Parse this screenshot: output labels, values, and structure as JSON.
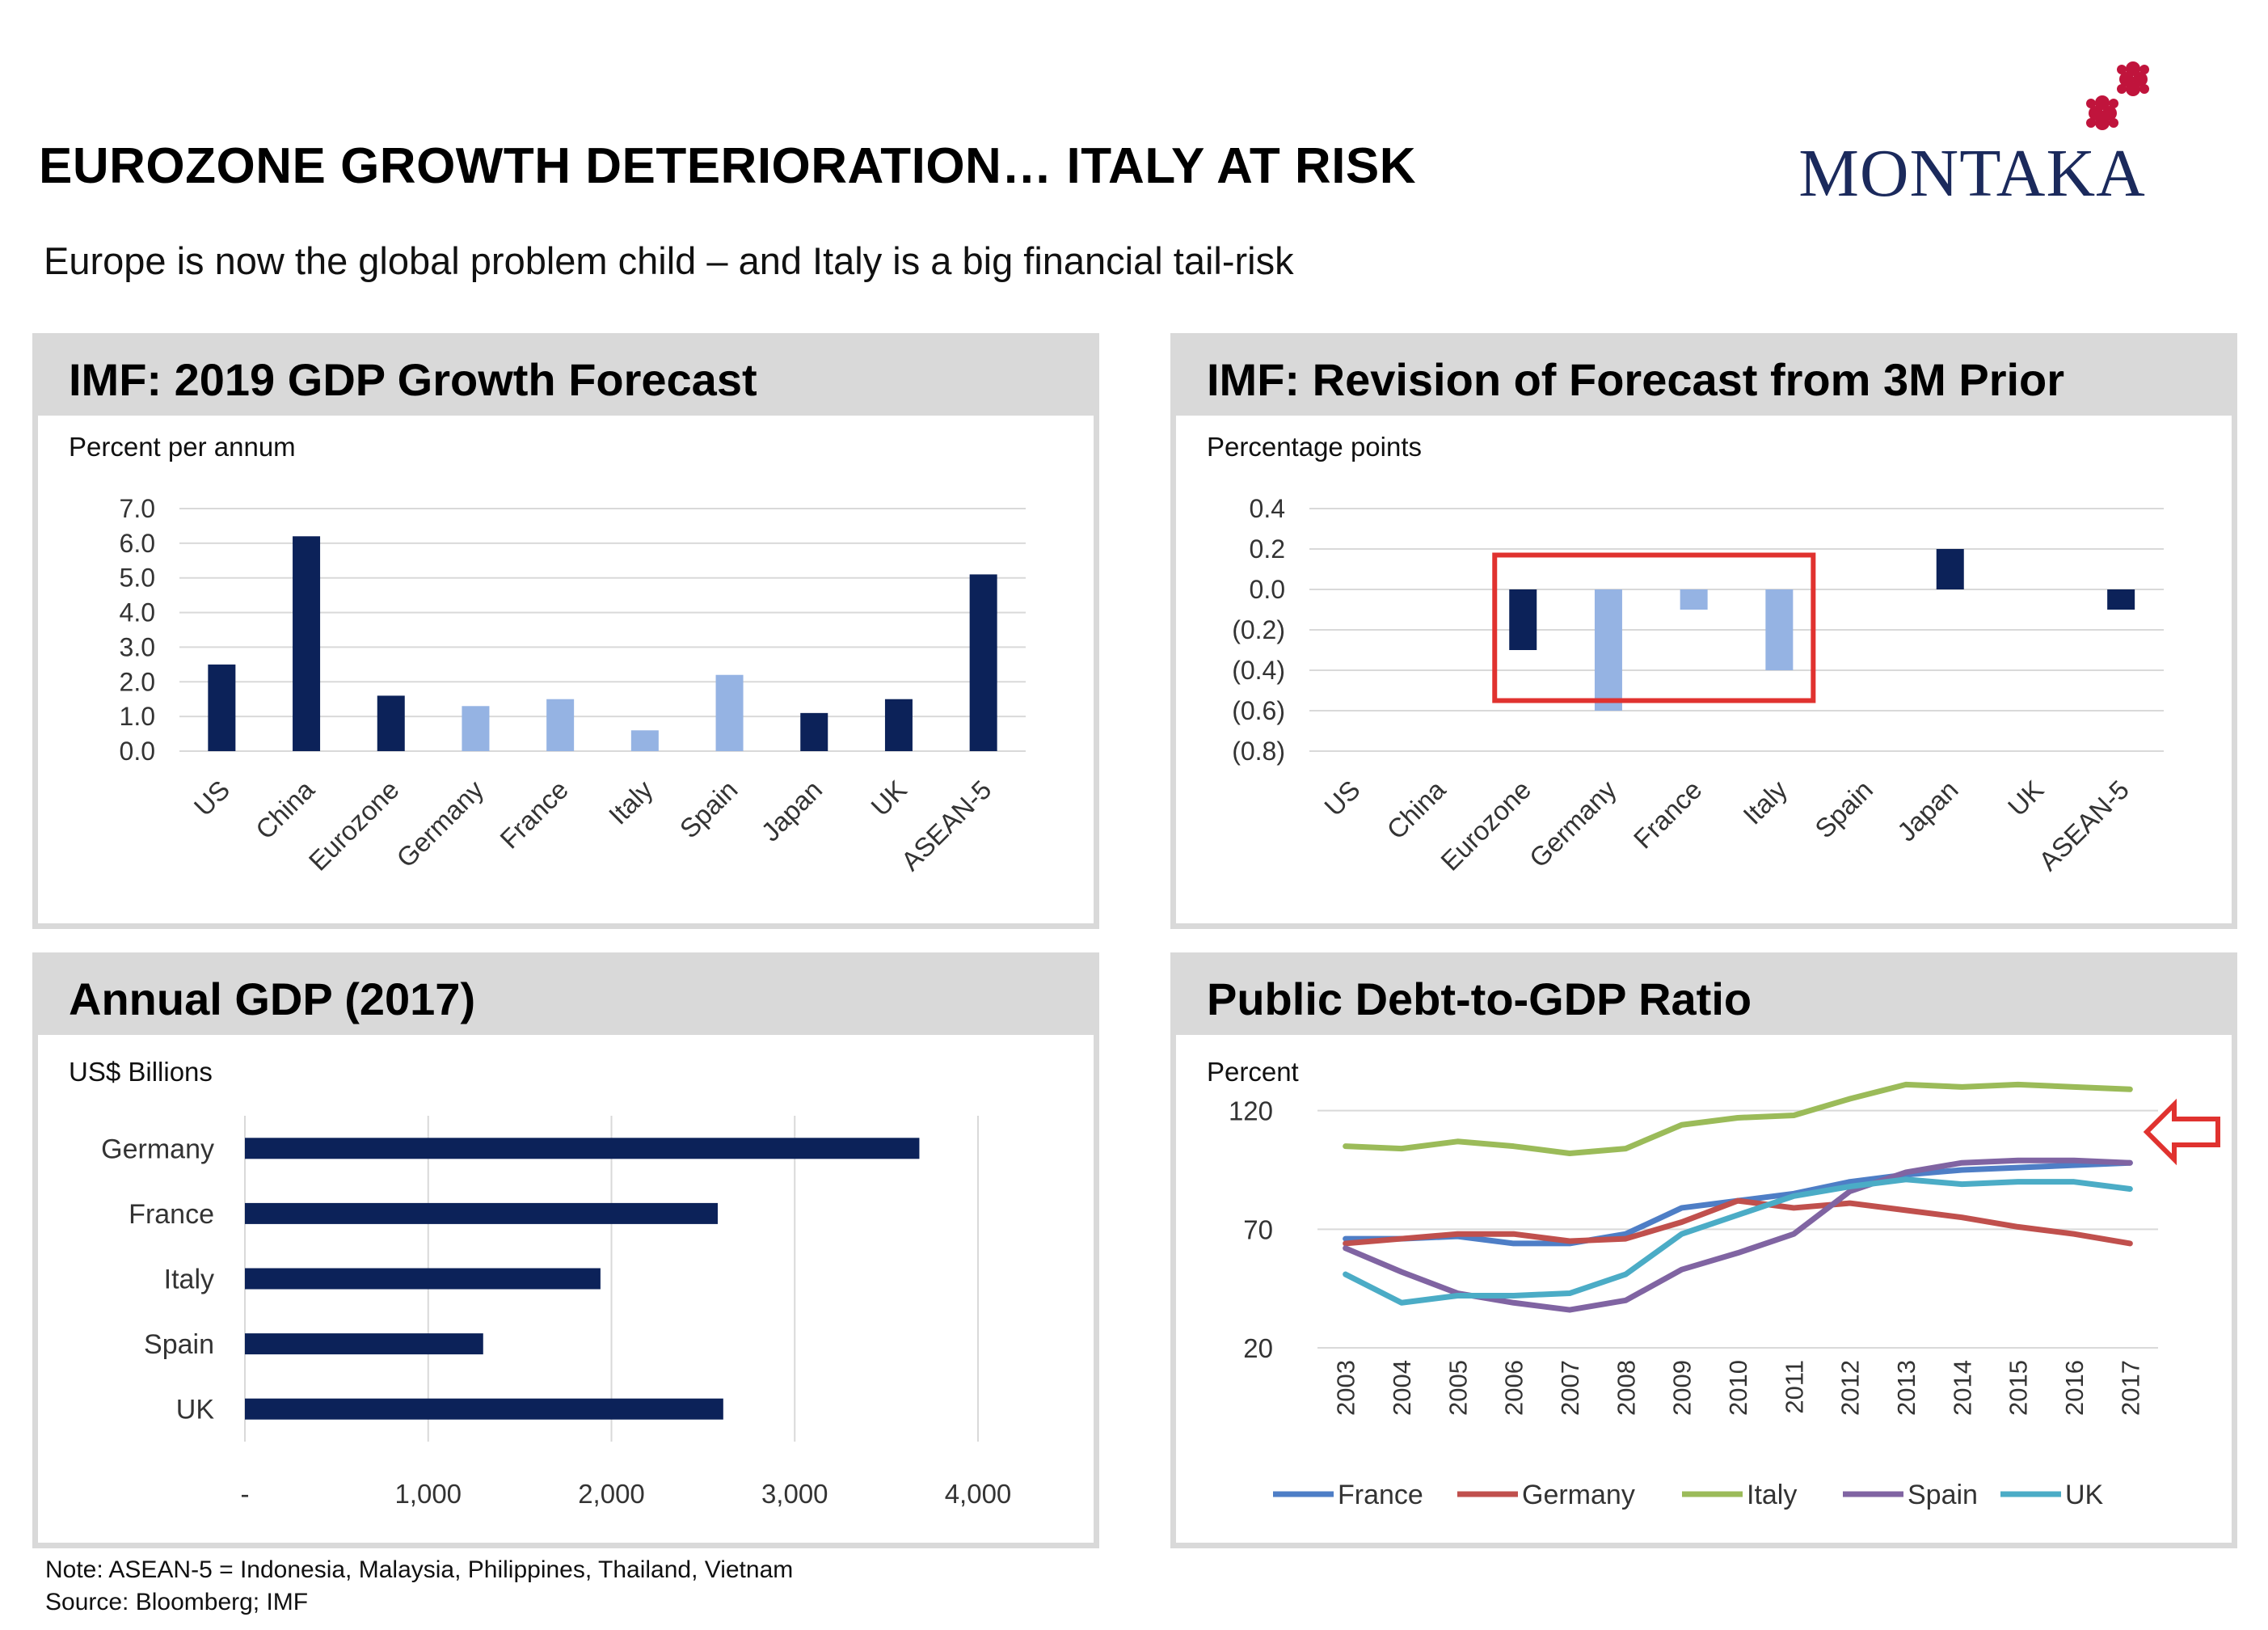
{
  "header": {
    "title": "EUROZONE GROWTH DETERIORATION… ITALY AT RISK",
    "subtitle": "Europe is now the global problem child – and Italy is a big financial tail-risk",
    "logo_text": "MONTAKA"
  },
  "colors": {
    "dark_navy": "#0c2259",
    "light_blue": "#95b3e3",
    "panel_gray": "#d9d9d9",
    "grid": "#d9d9d9",
    "highlight_red": "#e0322f",
    "logo_red": "#c0143c",
    "logo_navy": "#1b2a5c"
  },
  "footnote": {
    "note": "Note: ASEAN-5 = Indonesia, Malaysia, Philippines,  Thailand, Vietnam",
    "source": "Source: Bloomberg; IMF"
  },
  "chart_data": [
    {
      "id": "gdp-growth",
      "type": "bar",
      "title": "IMF: 2019 GDP Growth Forecast",
      "unit_label": "Percent per annum",
      "categories": [
        "US",
        "China",
        "Eurozone",
        "Germany",
        "France",
        "Italy",
        "Spain",
        "Japan",
        "UK",
        "ASEAN-5"
      ],
      "values": [
        2.5,
        6.2,
        1.6,
        1.3,
        1.5,
        0.6,
        2.2,
        1.1,
        1.5,
        5.1
      ],
      "highlight": [
        false,
        false,
        false,
        true,
        true,
        true,
        true,
        false,
        false,
        false
      ],
      "ylim": [
        0,
        7
      ],
      "yticks": [
        0,
        1,
        2,
        3,
        4,
        5,
        6,
        7
      ],
      "ytick_labels": [
        "0.0",
        "1.0",
        "2.0",
        "3.0",
        "4.0",
        "5.0",
        "6.0",
        "7.0"
      ],
      "grid": true
    },
    {
      "id": "forecast-revision",
      "type": "bar",
      "title": "IMF: Revision of Forecast from 3M Prior",
      "unit_label": "Percentage points",
      "categories": [
        "US",
        "China",
        "Eurozone",
        "Germany",
        "France",
        "Italy",
        "Spain",
        "Japan",
        "UK",
        "ASEAN-5"
      ],
      "values": [
        0,
        0,
        -0.3,
        -0.6,
        -0.1,
        -0.4,
        0,
        0.2,
        0,
        -0.1
      ],
      "highlight": [
        false,
        false,
        false,
        true,
        true,
        true,
        true,
        false,
        false,
        false
      ],
      "ylim": [
        -0.8,
        0.4
      ],
      "yticks": [
        0.4,
        0.2,
        0,
        -0.2,
        -0.4,
        -0.6,
        -0.8
      ],
      "ytick_labels": [
        "0.4",
        "0.2",
        "0.0",
        "(0.2)",
        "(0.4)",
        "(0.6)",
        "(0.8)"
      ],
      "highlight_box_categories": [
        "Eurozone",
        "Italy"
      ],
      "grid": true
    },
    {
      "id": "annual-gdp",
      "type": "bar",
      "orientation": "horizontal",
      "title": "Annual GDP (2017)",
      "unit_label": "US$ Billions",
      "categories": [
        "Germany",
        "France",
        "Italy",
        "Spain",
        "UK"
      ],
      "values": [
        3680,
        2580,
        1940,
        1300,
        2610
      ],
      "xlim": [
        0,
        4000
      ],
      "xticks": [
        0,
        1000,
        2000,
        3000,
        4000
      ],
      "xtick_labels": [
        "-",
        "1,000",
        "2,000",
        "3,000",
        "4,000"
      ],
      "grid": true
    },
    {
      "id": "debt-to-gdp",
      "type": "line",
      "title": "Public Debt-to-GDP Ratio",
      "unit_label": "Percent",
      "x": [
        "2003",
        "2004",
        "2005",
        "2006",
        "2007",
        "2008",
        "2009",
        "2010",
        "2011",
        "2012",
        "2013",
        "2014",
        "2015",
        "2016",
        "2017"
      ],
      "ylim": [
        20,
        140
      ],
      "yticks": [
        20,
        70,
        120
      ],
      "ytick_labels": [
        "20",
        "70",
        "120"
      ],
      "legend_position": "bottom",
      "grid": true,
      "series": [
        {
          "name": "France",
          "color": "#4e7ec6",
          "values": [
            66,
            66,
            67,
            64,
            64,
            68,
            79,
            82,
            85,
            90,
            93,
            95,
            96,
            97,
            98
          ]
        },
        {
          "name": "Germany",
          "color": "#c0504d",
          "values": [
            64,
            66,
            68,
            68,
            65,
            66,
            73,
            82,
            79,
            81,
            78,
            75,
            71,
            68,
            64
          ]
        },
        {
          "name": "Italy",
          "color": "#9bbb59",
          "values": [
            105,
            104,
            107,
            105,
            102,
            104,
            114,
            117,
            118,
            125,
            131,
            130,
            131,
            130,
            129
          ]
        },
        {
          "name": "Spain",
          "color": "#8064a2",
          "values": [
            62,
            52,
            43,
            39,
            36,
            40,
            53,
            60,
            68,
            86,
            94,
            98,
            99,
            99,
            98
          ]
        },
        {
          "name": "UK",
          "color": "#4bacc6",
          "values": [
            51,
            39,
            42,
            42,
            43,
            51,
            68,
            76,
            84,
            88,
            91,
            89,
            90,
            90,
            87
          ]
        }
      ]
    }
  ]
}
